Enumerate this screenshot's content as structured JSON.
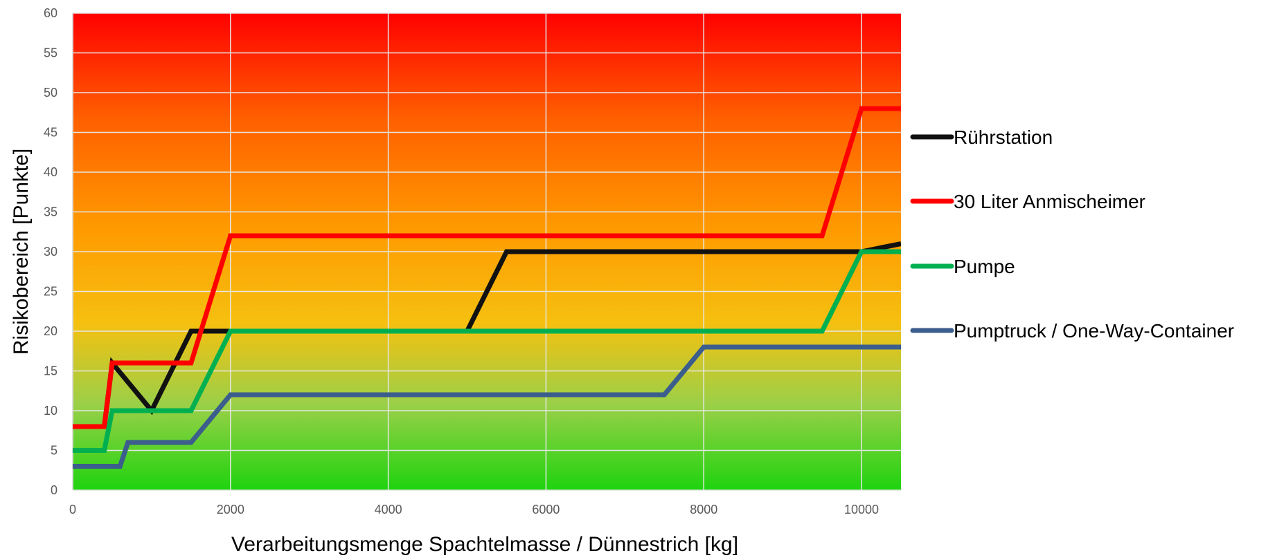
{
  "chart_data": {
    "type": "line",
    "title": "",
    "xlabel": "Verarbeitungsmenge Spachtelmasse / Dünnestrich [kg]",
    "ylabel": "Risikobereich [Punkte]",
    "xlim": [
      0,
      10500
    ],
    "ylim": [
      0,
      60
    ],
    "x_ticks": [
      0,
      2000,
      4000,
      6000,
      8000,
      10000
    ],
    "y_ticks": [
      0,
      5,
      10,
      15,
      20,
      25,
      30,
      35,
      40,
      45,
      50,
      55,
      60
    ],
    "grid": true,
    "legend_position": "right",
    "background": "vertical gradient green-yellow-orange-red",
    "gradient_colors": [
      "#1fd30f",
      "#9bd048",
      "#f5c010",
      "#ff9a00",
      "#ff5f00",
      "#ff0000"
    ],
    "series": [
      {
        "name": "Rührstation",
        "color": "#111111",
        "points": [
          [
            0,
            8
          ],
          [
            400,
            8
          ],
          [
            500,
            16
          ],
          [
            1000,
            10
          ],
          [
            1500,
            20
          ],
          [
            2000,
            20
          ],
          [
            5000,
            20
          ],
          [
            5500,
            30
          ],
          [
            10000,
            30
          ],
          [
            10500,
            31
          ]
        ]
      },
      {
        "name": "30 Liter Anmischeimer",
        "color": "#ff0000",
        "points": [
          [
            0,
            8
          ],
          [
            400,
            8
          ],
          [
            500,
            16
          ],
          [
            1500,
            16
          ],
          [
            2000,
            32
          ],
          [
            9500,
            32
          ],
          [
            10000,
            48
          ],
          [
            10500,
            48
          ]
        ]
      },
      {
        "name": "Pumpe",
        "color": "#00b050",
        "points": [
          [
            0,
            5
          ],
          [
            400,
            5
          ],
          [
            500,
            10
          ],
          [
            1500,
            10
          ],
          [
            2000,
            20
          ],
          [
            9500,
            20
          ],
          [
            10000,
            30
          ],
          [
            10500,
            30
          ]
        ]
      },
      {
        "name": "Pumptruck / One-Way-Container",
        "color": "#3b5e8c",
        "points": [
          [
            0,
            3
          ],
          [
            600,
            3
          ],
          [
            700,
            6
          ],
          [
            1500,
            6
          ],
          [
            2000,
            12
          ],
          [
            7500,
            12
          ],
          [
            8000,
            18
          ],
          [
            10500,
            18
          ]
        ]
      }
    ]
  }
}
